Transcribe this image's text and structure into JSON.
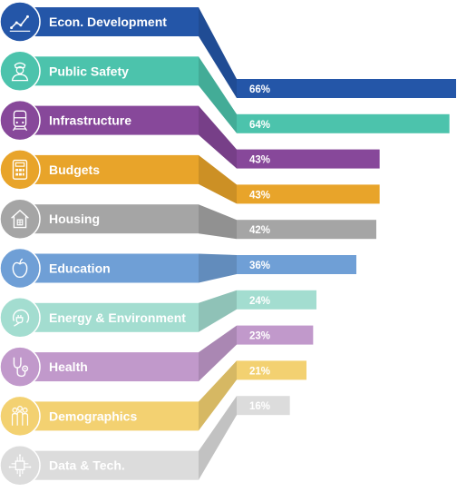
{
  "chart_data": {
    "type": "bar",
    "orientation": "horizontal",
    "categories": [
      "Econ. Development",
      "Public Safety",
      "Infrastructure",
      "Budgets",
      "Housing",
      "Education",
      "Energy & Environment",
      "Health",
      "Demographics",
      "Data & Tech."
    ],
    "values": [
      66,
      64,
      43,
      43,
      42,
      36,
      24,
      23,
      21,
      16
    ],
    "value_labels": [
      "66%",
      "64%",
      "43%",
      "43%",
      "42%",
      "36%",
      "24%",
      "23%",
      "21%",
      "16%"
    ],
    "xlim": [
      0,
      66
    ],
    "colors": [
      "#2456a8",
      "#4cc3ac",
      "#87489a",
      "#e8a42a",
      "#a5a5a5",
      "#6f9fd6",
      "#a3ddd0",
      "#c199cb",
      "#f3d171",
      "#dcdcdc"
    ],
    "icons": [
      "line-chart-icon",
      "police-officer-icon",
      "train-icon",
      "calculator-icon",
      "house-icon",
      "apple-icon",
      "power-plug-icon",
      "stethoscope-icon",
      "people-group-icon",
      "circuit-chip-icon"
    ]
  }
}
